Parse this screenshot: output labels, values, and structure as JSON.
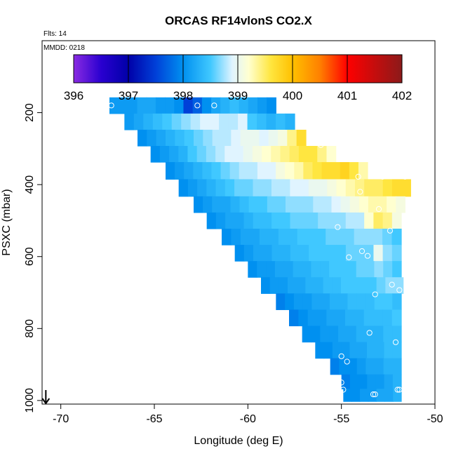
{
  "chart_data": {
    "type": "heatmap",
    "title": "ORCAS RF14vlonS CO2.X",
    "notes": [
      "Flts: 14",
      "MMDD: 0218"
    ],
    "xlabel": "Longitude (deg E)",
    "ylabel": "PSXC (mbar)",
    "xlim": [
      -71.0,
      -50.0
    ],
    "ylim": [
      1010,
      0
    ],
    "xticks": [
      -70,
      -65,
      -60,
      -55,
      -50
    ],
    "xtick_labels": [
      "-70",
      "-65",
      "-60",
      "-55",
      "-50"
    ],
    "yticks": [
      200,
      400,
      600,
      800,
      1000
    ],
    "ytick_labels": [
      "200",
      "400",
      "600",
      "800",
      "1000"
    ],
    "colorbar": {
      "min": 396,
      "max": 402,
      "ticks": [
        396,
        397,
        398,
        399,
        400,
        401,
        402
      ],
      "tick_labels": [
        "396",
        "397",
        "398",
        "399",
        "400",
        "401",
        "402"
      ],
      "stops": [
        {
          "v": 396.0,
          "c": "#8a2be2"
        },
        {
          "v": 396.5,
          "c": "#2a00d0"
        },
        {
          "v": 397.0,
          "c": "#0000a8"
        },
        {
          "v": 397.5,
          "c": "#0040d8"
        },
        {
          "v": 398.0,
          "c": "#0090f0"
        },
        {
          "v": 398.5,
          "c": "#40c8ff"
        },
        {
          "v": 398.9,
          "c": "#e0f4ff"
        },
        {
          "v": 399.2,
          "c": "#ffffd0"
        },
        {
          "v": 399.6,
          "c": "#ffe640"
        },
        {
          "v": 400.0,
          "c": "#ffc000"
        },
        {
          "v": 400.5,
          "c": "#ff8000"
        },
        {
          "v": 401.0,
          "c": "#ff0000"
        },
        {
          "v": 402.0,
          "c": "#8b1a1a"
        }
      ]
    },
    "arrow": {
      "direction": "down",
      "longitude": -70.8
    },
    "rows": [
      {
        "p": 180,
        "start": -67.4,
        "end": -58.5,
        "vals": [
          398.1,
          398.1,
          398.1,
          398.2,
          398.2,
          398.1,
          398.1,
          398.0,
          397.5,
          397.7,
          398.0,
          398.2,
          398.3,
          398.4,
          398.3,
          398.2,
          398.1,
          398.0
        ]
      },
      {
        "p": 225,
        "start": -66.6,
        "end": -57.5,
        "vals": [
          398.1,
          398.2,
          398.3,
          398.4,
          398.5,
          398.6,
          398.7,
          398.8,
          398.9,
          398.9,
          398.8,
          398.8,
          398.9,
          398.5,
          398.4,
          398.3,
          398.4,
          398.3
        ]
      },
      {
        "p": 270,
        "start": -65.9,
        "end": -56.9,
        "vals": [
          398.0,
          398.1,
          398.2,
          398.3,
          398.4,
          398.5,
          398.6,
          398.7,
          398.8,
          398.8,
          398.9,
          399.0,
          399.0,
          398.9,
          399.0,
          399.1,
          399.4,
          399.7
        ]
      },
      {
        "p": 315,
        "start": -65.2,
        "end": -55.3,
        "vals": [
          398.0,
          398.1,
          398.2,
          398.3,
          398.5,
          398.6,
          398.7,
          398.8,
          398.9,
          398.9,
          399.0,
          399.1,
          399.2,
          399.3,
          399.4,
          399.5,
          399.6,
          399.6,
          399.4,
          399.2
        ]
      },
      {
        "p": 360,
        "start": -64.4,
        "end": -53.6,
        "vals": [
          398.0,
          398.1,
          398.2,
          398.3,
          398.4,
          398.5,
          398.6,
          398.7,
          398.8,
          398.8,
          398.9,
          398.9,
          399.1,
          399.2,
          399.3,
          399.5,
          399.6,
          399.7,
          399.7,
          399.8,
          399.6,
          399.3
        ]
      },
      {
        "p": 410,
        "start": -63.7,
        "end": -51.3,
        "vals": [
          398.0,
          398.1,
          398.2,
          398.3,
          398.4,
          398.5,
          398.6,
          398.6,
          398.7,
          398.7,
          398.8,
          398.8,
          398.9,
          398.9,
          399.0,
          399.0,
          399.1,
          399.2,
          399.3,
          399.4,
          399.5,
          399.5,
          399.6,
          399.7,
          399.7
        ]
      },
      {
        "p": 455,
        "start": -62.9,
        "end": -51.6,
        "vals": [
          398.0,
          398.1,
          398.2,
          398.2,
          398.3,
          398.4,
          398.5,
          398.5,
          398.6,
          398.6,
          398.7,
          398.7,
          398.7,
          398.8,
          398.8,
          398.9,
          399.0,
          399.1,
          399.2,
          399.3,
          399.3,
          399.2,
          399.1
        ]
      },
      {
        "p": 500,
        "start": -62.2,
        "end": -51.8,
        "vals": [
          398.0,
          398.1,
          398.2,
          398.2,
          398.3,
          398.4,
          398.4,
          398.5,
          398.5,
          398.6,
          398.6,
          398.6,
          398.7,
          398.7,
          398.7,
          398.8,
          398.8,
          399.2,
          399.5,
          399.4,
          399.1
        ]
      },
      {
        "p": 545,
        "start": -61.4,
        "end": -51.8,
        "vals": [
          398.0,
          398.1,
          398.2,
          398.2,
          398.3,
          398.3,
          398.4,
          398.4,
          398.5,
          398.5,
          398.5,
          398.6,
          398.6,
          398.6,
          398.7,
          398.7,
          398.7,
          398.6,
          398.5
        ]
      },
      {
        "p": 590,
        "start": -60.7,
        "end": -51.8,
        "vals": [
          398.0,
          398.1,
          398.2,
          398.2,
          398.3,
          398.3,
          398.4,
          398.4,
          398.5,
          398.5,
          398.5,
          398.5,
          398.6,
          398.6,
          398.6,
          399.0,
          398.7,
          398.6
        ]
      },
      {
        "p": 635,
        "start": -60.0,
        "end": -51.8,
        "vals": [
          398.0,
          398.1,
          398.1,
          398.2,
          398.2,
          398.3,
          398.3,
          398.4,
          398.4,
          398.5,
          398.5,
          398.5,
          398.6,
          398.6,
          398.7,
          398.6,
          398.5
        ]
      },
      {
        "p": 680,
        "start": -59.3,
        "end": -51.7,
        "vals": [
          398.0,
          398.1,
          398.1,
          398.2,
          398.2,
          398.3,
          398.3,
          398.4,
          398.4,
          398.5,
          398.5,
          398.5,
          398.5,
          398.6,
          398.7,
          398.7
        ]
      },
      {
        "p": 725,
        "start": -58.5,
        "end": -51.8,
        "vals": [
          397.9,
          398.0,
          398.1,
          398.1,
          398.2,
          398.2,
          398.3,
          398.3,
          398.4,
          398.4,
          398.4,
          398.5,
          398.5,
          398.4
        ]
      },
      {
        "p": 770,
        "start": -57.8,
        "end": -51.8,
        "vals": [
          397.9,
          398.0,
          398.1,
          398.1,
          398.2,
          398.2,
          398.3,
          398.3,
          398.4,
          398.4,
          398.4,
          398.5
        ]
      },
      {
        "p": 815,
        "start": -57.1,
        "end": -51.8,
        "vals": [
          398.0,
          398.0,
          398.1,
          398.1,
          398.2,
          398.2,
          398.3,
          398.3,
          398.3,
          398.4,
          398.4
        ]
      },
      {
        "p": 860,
        "start": -56.4,
        "end": -51.8,
        "vals": [
          398.0,
          398.0,
          398.1,
          398.1,
          398.2,
          398.2,
          398.3,
          398.3,
          398.4,
          398.4
        ]
      },
      {
        "p": 905,
        "start": -55.6,
        "end": -51.8,
        "vals": [
          397.9,
          398.0,
          398.0,
          398.1,
          398.2,
          398.2,
          398.3,
          398.3
        ]
      },
      {
        "p": 950,
        "start": -55.0,
        "end": -51.8,
        "vals": [
          397.9,
          398.0,
          398.0,
          398.1,
          398.1,
          398.2,
          398.3
        ]
      },
      {
        "p": 985,
        "start": -54.9,
        "end": -51.8,
        "vals": [
          398.0,
          398.0,
          398.1,
          398.1,
          398.2,
          398.2,
          398.3
        ]
      }
    ],
    "points": [
      {
        "lon": -67.3,
        "p": 180
      },
      {
        "lon": -62.7,
        "p": 180
      },
      {
        "lon": -61.8,
        "p": 180
      },
      {
        "lon": -58.3,
        "p": 180
      },
      {
        "lon": -58.0,
        "p": 180
      },
      {
        "lon": -56.1,
        "p": 290
      },
      {
        "lon": -54.1,
        "p": 378
      },
      {
        "lon": -52.8,
        "p": 378
      },
      {
        "lon": -51.6,
        "p": 378
      },
      {
        "lon": -54.0,
        "p": 420
      },
      {
        "lon": -53.0,
        "p": 468
      },
      {
        "lon": -55.2,
        "p": 518
      },
      {
        "lon": -52.4,
        "p": 528
      },
      {
        "lon": -53.9,
        "p": 585
      },
      {
        "lon": -54.6,
        "p": 602
      },
      {
        "lon": -53.6,
        "p": 598
      },
      {
        "lon": -52.3,
        "p": 678
      },
      {
        "lon": -51.9,
        "p": 693
      },
      {
        "lon": -53.2,
        "p": 705
      },
      {
        "lon": -53.5,
        "p": 812
      },
      {
        "lon": -52.1,
        "p": 838
      },
      {
        "lon": -55.0,
        "p": 877
      },
      {
        "lon": -54.7,
        "p": 892
      },
      {
        "lon": -55.0,
        "p": 950
      },
      {
        "lon": -54.9,
        "p": 970
      },
      {
        "lon": -53.3,
        "p": 983
      },
      {
        "lon": -53.2,
        "p": 983
      },
      {
        "lon": -52.0,
        "p": 970
      },
      {
        "lon": -51.9,
        "p": 970
      }
    ]
  }
}
